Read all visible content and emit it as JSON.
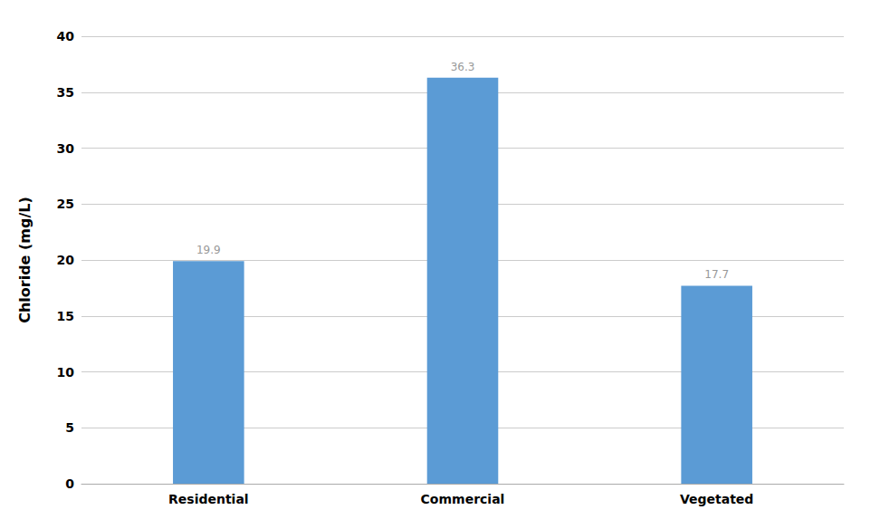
{
  "chart_data": {
    "type": "bar",
    "categories": [
      "Residential",
      "Commercial",
      "Vegetated"
    ],
    "values": [
      19.9,
      36.3,
      17.7
    ],
    "color": "#5B9BD5",
    "ylabel": "Chloride (mg/L)",
    "ylim": [
      0,
      40
    ],
    "yticks": [
      0,
      5,
      10,
      15,
      20,
      25,
      30,
      35,
      40
    ],
    "grid": true,
    "data_labels": true
  }
}
